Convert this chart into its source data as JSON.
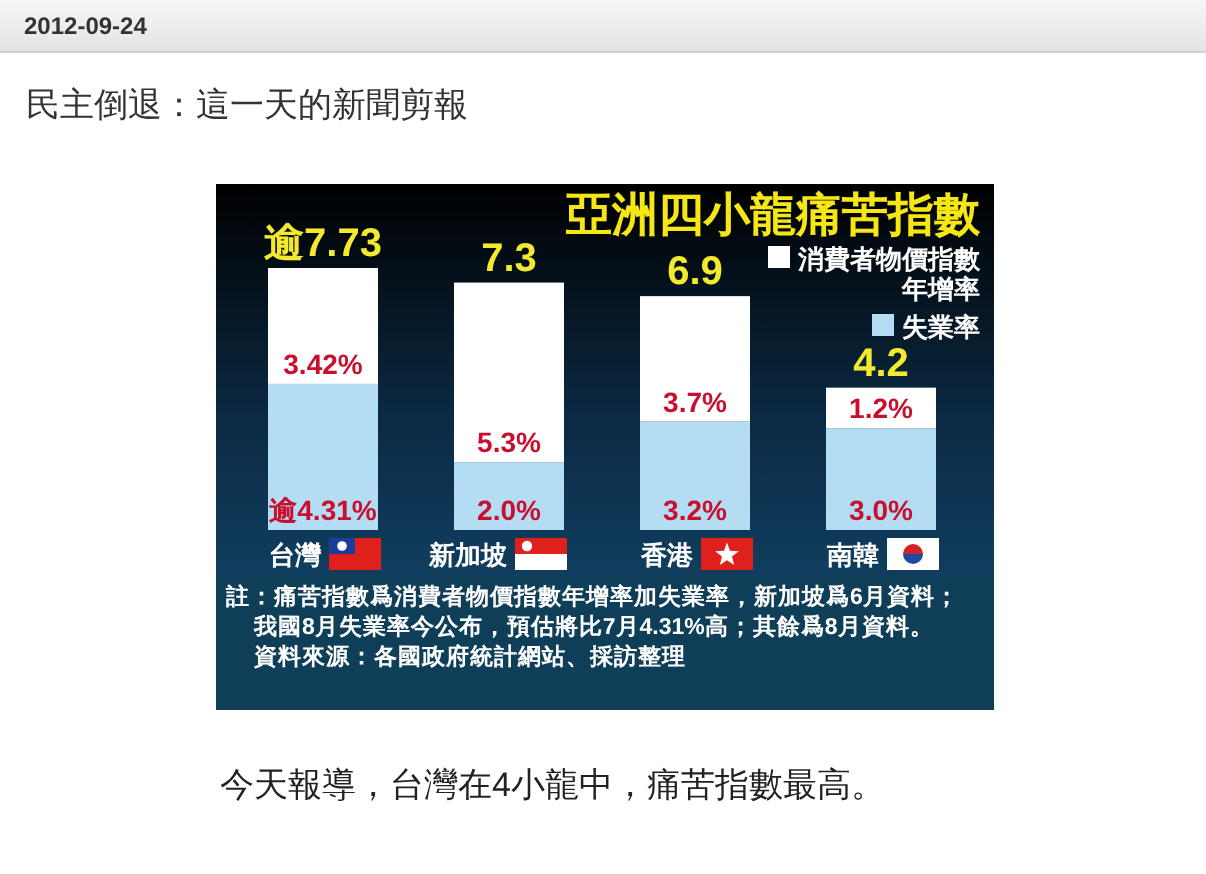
{
  "chart_data": {
    "type": "bar",
    "stacked": true,
    "title": "亞洲四小龍痛苦指數",
    "categories": [
      "台灣",
      "新加坡",
      "香港",
      "南韓"
    ],
    "series": [
      {
        "name": "失業率",
        "color": "#b4dcf2",
        "values": [
          4.31,
          2.0,
          3.2,
          3.0
        ],
        "value_labels": [
          "逾4.31%",
          "2.0%",
          "3.2%",
          "3.0%"
        ]
      },
      {
        "name": "消費者物價指數年增率",
        "color": "#ffffff",
        "values": [
          3.42,
          5.3,
          3.7,
          1.2
        ],
        "value_labels": [
          "3.42%",
          "5.3%",
          "3.7%",
          "1.2%"
        ]
      }
    ],
    "totals": [
      "逾7.73",
      "7.3",
      "6.9",
      "4.2"
    ],
    "legend": "top right",
    "annotations": [
      "2012-09-24",
      "民主倒退：這一天的新聞剪報",
      "註：痛苦指數爲消費者物價指數年增率加失業率，新加坡爲6月資料；我國8月失業率今公布，預估將比7月4.31%高；其餘爲8月資料。",
      "資料來源：各國政府統計網站、採訪整理",
      "今天報導，台灣在4小龍中，痛苦指數最高。"
    ]
  }
}
